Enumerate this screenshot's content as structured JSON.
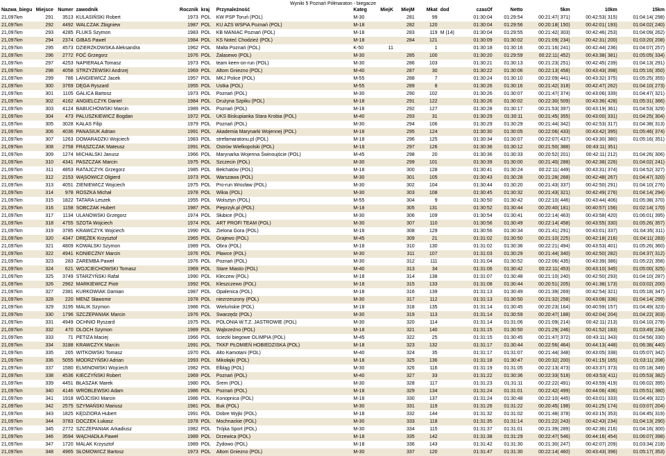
{
  "title": "Wyniki 5 Poznań Półmaraton - biegacze",
  "columns": [
    "Nazwa_biegu",
    "Miejsce",
    "Numer",
    "zawodnik",
    "Rocznik",
    "kraj",
    "Przynależność",
    "Kateg",
    "MiejK",
    "MiejM",
    "Mkat",
    "dod",
    "czasOf",
    "Netto",
    "5km",
    "10km",
    "15km"
  ],
  "col_align": [
    "l",
    "r",
    "r",
    "l",
    "r",
    "l",
    "l",
    "l",
    "r",
    "r",
    "r",
    "l",
    "r",
    "r",
    "r",
    "r",
    "r"
  ],
  "row_colors": {
    "odd": "#ffffff",
    "even": "#efe7d6"
  },
  "rows": [
    [
      "21,097km",
      "291",
      "3513",
      "KULASIŃSKI Robert",
      "1973",
      "POL",
      "KW PSP Toruń (POL)",
      "M-30",
      "",
      "281",
      "99",
      "",
      "01:30:04",
      "01:29:54",
      "00:21:47( 371)",
      "00:42:53( 315)",
      "01:04:14( 298)"
    ],
    [
      "21,097km",
      "292",
      "4492",
      "WALCZAK Zbigniew",
      "1987",
      "POL",
      "KU AZS WSPiA Poznań (POL)",
      "M-18",
      "",
      "282",
      "120",
      "",
      "01:30:04",
      "01:29:56",
      "00:20:18( 150)",
      "00:42:01( 193)",
      "01:04:02( 240)"
    ],
    [
      "21,097km",
      "293",
      "4285",
      "FLUKS Szymon",
      "1983",
      "POL",
      "KB MANIAC Poznań (POL)",
      "M-18",
      "",
      "283",
      "119",
      "M (14)",
      "01:30:04",
      "01:29:55",
      "00:21:42( 303)",
      "00:42:46( 253)",
      "01:04:09( 262)"
    ],
    [
      "21,097km",
      "294",
      "2374",
      "GIBAS Paweł",
      "1984",
      "POL",
      "KS Noteć Chodzież (POL)",
      "M-18",
      "",
      "284",
      "121",
      "",
      "01:30:09",
      "01:30:02",
      "00:21:09( 234)",
      "00:42:31( 200)",
      "01:03:20( 208)"
    ],
    [
      "21,097km",
      "295",
      "4573",
      "DZIERZKOWSKA Aleksandra",
      "1962",
      "POL",
      "Malta Poznań (POL)",
      "K-50",
      "11",
      "",
      "1",
      "",
      "01:30:18",
      "01:30:16",
      "00:21:16( 241)",
      "00:42:44( 236)",
      "01:04:07( 257)"
    ],
    [
      "21,097km",
      "296",
      "2772",
      "FOĆ Grzegorz",
      "1976",
      "POL",
      "Żalasewo (POL)",
      "M-30",
      "",
      "285",
      "100",
      "",
      "01:30:20",
      "01:29:59",
      "00:22:11( 452)",
      "00:43:38( 381)",
      "01:05:05( 334)"
    ],
    [
      "21,097km",
      "297",
      "4253",
      "NAPIERAŁA Tomasz",
      "1973",
      "POL",
      "team keen-on-run (POL)",
      "M-30",
      "",
      "286",
      "103",
      "",
      "01:30:21",
      "01:30:13",
      "00:21:23( 251)",
      "00:42:45( 239)",
      "01:04:13( 291)"
    ],
    [
      "21,097km",
      "298",
      "4058",
      "STRZYŻEWSKI Andrzej",
      "1969",
      "POL",
      "Altom Gniezno (POL)",
      "M-40",
      "",
      "287",
      "30",
      "",
      "01:30:22",
      "01:30:06",
      "00:22:13( 458)",
      "00:43:43( 398)",
      "01:05:16( 350)"
    ],
    [
      "21,097km",
      "299",
      "786",
      "LANGIEWICZ Jacek",
      "1957",
      "POL",
      "MKJ Police (POL)",
      "M-55",
      "",
      "288",
      "7",
      "",
      "01:30:24",
      "01:30:10",
      "00:22:09( 441)",
      "00:43:32( 375)",
      "01:05:25( 355)"
    ],
    [
      "21,097km",
      "300",
      "3769",
      "DĘGA Ryszard",
      "1955",
      "POL",
      "Ustka (POL)",
      "M-55",
      "",
      "289",
      "8",
      "",
      "01:30:26",
      "01:30:16",
      "00:21:42( 318)",
      "00:42:47( 262)",
      "01:04:10( 273)"
    ],
    [
      "21,097km",
      "301",
      "1105",
      "GALICA Bartosz",
      "1973",
      "POL",
      "Poznań (POL)",
      "M-30",
      "",
      "290",
      "102",
      "",
      "01:30:26",
      "01:30:07",
      "00:21:47( 374)",
      "00:43:06( 339)",
      "01:04:47( 321)"
    ],
    [
      "21,097km",
      "302",
      "4162",
      "ANGIELCZYK Daniel",
      "1984",
      "POL",
      "Drużyna Szpiku (POL)",
      "M-18",
      "",
      "291",
      "122",
      "",
      "01:30:26",
      "01:30:02",
      "00:22:30( 509)",
      "00:43:36( 428)",
      "01:05:31( 366)"
    ],
    [
      "21,097km",
      "303",
      "4124",
      "BABUCHOWSKI Marcin",
      "1989",
      "POL",
      "Poznań (POL)",
      "M-18",
      "",
      "292",
      "127",
      "",
      "01:30:28",
      "01:30:17",
      "00:21:53( 397)",
      "00:43:19( 361)",
      "01:04:53( 329)"
    ],
    [
      "21,097km",
      "304",
      "473",
      "PALUSZKIEWICZ Bogdan",
      "1972",
      "POL",
      "UKS Biskupianka Stara Krobia (POL)",
      "M-40",
      "",
      "293",
      "31",
      "",
      "01:30:29",
      "01:30:11",
      "00:21:45( 355)",
      "00:43:00( 331)",
      "01:04:25( 304)"
    ],
    [
      "21,097km",
      "305",
      "3028",
      "KAŁAS Filip",
      "1979",
      "POL",
      "Poznań (POL)",
      "M-30",
      "",
      "294",
      "106",
      "",
      "01:30:29",
      "01:30:29",
      "00:21:44( 342)",
      "00:42:53( 317)",
      "01:04:38( 313)"
    ],
    [
      "21,097km",
      "306",
      "4036",
      "PANASIUK Adrian",
      "1991",
      "POL",
      "Akademia Marynarki Wojennej (POL)",
      "M-18",
      "",
      "295",
      "124",
      "",
      "01:30:30",
      "01:30:05",
      "00:22:06( 433)",
      "00:43:42( 395)",
      "01:05:46( 374)"
    ],
    [
      "21,097km",
      "307",
      "1263",
      "DOMARADZKI Wojciech",
      "1983",
      "POL",
      "strefamaratonu.pl (POL)",
      "M-18",
      "",
      "296",
      "125",
      "",
      "01:30:34",
      "01:30:07",
      "00:22:07( 437)",
      "00:43:30( 380)",
      "01:05:16( 351)"
    ],
    [
      "21,097km",
      "308",
      "2758",
      "FRĄSZCZAK Mateusz",
      "1991",
      "POL",
      "Ostrów Wielkopolski (POL)",
      "M-18",
      "",
      "297",
      "126",
      "",
      "01:30:36",
      "01:30:12",
      "00:21:50( 388)",
      "00:43:11( 351)",
      ""
    ],
    [
      "21,097km",
      "309",
      "1274",
      "MICHALSKI Janusz",
      "1966",
      "POL",
      "Marynarka Wojenna Świnoujście (POL)",
      "M-45",
      "",
      "298",
      "20",
      "",
      "01:30:36",
      "01:30:33",
      "00:20:52( 201)",
      "00:42:11( 212)",
      "01:04:26( 306)"
    ],
    [
      "21,097km",
      "310",
      "4341",
      "PASZCZAK Marcin",
      "1975",
      "POL",
      "Szczecin (POL)",
      "M-30",
      "",
      "299",
      "101",
      "",
      "01:30:39",
      "01:30:00",
      "00:21:40( 288)",
      "00:42:38( 226)",
      "01:04:02( 241)"
    ],
    [
      "21,097km",
      "311",
      "4853",
      "RATAJCZYK Grzegorz",
      "1985",
      "POL",
      "Bełchatów (POL)",
      "M-18",
      "",
      "300",
      "128",
      "",
      "01:30:41",
      "01:30:24",
      "00:22:11( 449)",
      "00:43:31( 374)",
      "01:04:52( 327)"
    ],
    [
      "21,097km",
      "312",
      "2153",
      "WĄSOWICZ Olgierd",
      "1973",
      "POL",
      "Warszawa (POL)",
      "M-30",
      "",
      "301",
      "105",
      "",
      "01:30:43",
      "01:30:28",
      "00:21:28( 268)",
      "00:42:48( 267)",
      "01:04:47( 320)"
    ],
    [
      "21,097km",
      "313",
      "4051",
      "ZIENIEWICZ Wojciech",
      "1975",
      "POL",
      "Pro-run Wrocław (POL)",
      "M-30",
      "",
      "302",
      "104",
      "",
      "01:30:44",
      "01:30:20",
      "00:21:43( 337)",
      "00:42:50( 291)",
      "01:04:10( 276)"
    ],
    [
      "21,097km",
      "314",
      "978",
      "ROSZKA Michał",
      "1978",
      "POL",
      "Wikia (POL)",
      "M-30",
      "",
      "303",
      "108",
      "",
      "01:30:45",
      "01:30:32",
      "00:21:43( 321)",
      "00:42:49( 276)",
      "01:04:14( 294)"
    ],
    [
      "21,097km",
      "315",
      "1822",
      "TATARA Leszek",
      "1955",
      "POL",
      "Wolsztyn (POL)",
      "M-55",
      "",
      "304",
      "9",
      "",
      "01:30:50",
      "01:30:42",
      "00:22:10( 446)",
      "00:43:44( 406)",
      "01:05:38( 370)"
    ],
    [
      "21,097km",
      "316",
      "1158",
      "SOBCZAK Hubert",
      "1987",
      "POL",
      "Pieprzyk.pl (POL)",
      "M-18",
      "",
      "305",
      "131",
      "",
      "01:30:52",
      "01:30:44",
      "00:20:40( 181)",
      "00:40:57( 156)",
      "01:02:14( 170)"
    ],
    [
      "21,097km",
      "317",
      "1134",
      "ULANOWSKI Grzegorz",
      "1974",
      "POL",
      "Słubice (POL)",
      "M-30",
      "",
      "306",
      "109",
      "",
      "01:30:54",
      "01:30:41",
      "00:22:14( 463)",
      "00:43:58( 420)",
      "01:06:01( 395)"
    ],
    [
      "21,097km",
      "318",
      "4755",
      "SZOTA Wojciech",
      "1974",
      "POL",
      "ART PROFI TEAM (POL)",
      "M-30",
      "",
      "307",
      "110",
      "",
      "01:30:56",
      "01:30:49",
      "00:22:14( 458)",
      "00:43:55( 330)",
      "01:05:26( 357)"
    ],
    [
      "21,097km",
      "319",
      "3785",
      "KRAWCZYK Wojciech",
      "1990",
      "POL",
      "Zielona Gora (POL)",
      "M-18",
      "",
      "308",
      "129",
      "",
      "01:30:56",
      "01:30:34",
      "00:21:41( 291)",
      "00:43:01( 337)",
      "01:04:35( 311)"
    ],
    [
      "21,097km",
      "320",
      "4347",
      "DRĘŻEK Krzysztof",
      "1965",
      "POL",
      "Grajewo (POL)",
      "M-45",
      "",
      "309",
      "21",
      "",
      "01:31:02",
      "01:30:50",
      "00:21:10( 225)",
      "00:42:18( 216)",
      "01:04:11( 283)"
    ],
    [
      "21,097km",
      "321",
      "4809",
      "KOWALSKI Szymon",
      "1989",
      "POL",
      "Obra (POL)",
      "M-18",
      "",
      "310",
      "130",
      "",
      "01:31:02",
      "01:30:36",
      "00:22:21( 494)",
      "00:43:53( 401)",
      "01:05:26( 360)"
    ],
    [
      "21,097km",
      "322",
      "4941",
      "KONIECZNY Marcin",
      "1976",
      "POL",
      "Pławce (POL)",
      "M-30",
      "",
      "311",
      "107",
      "",
      "01:31:03",
      "01:30:29",
      "00:21:44( 340)",
      "00:42:50( 282)",
      "01:04:37( 312)"
    ],
    [
      "21,097km",
      "323",
      "283",
      "ZAREMBA Paweł",
      "1976",
      "POL",
      "Poznań (POL)",
      "M-30",
      "",
      "312",
      "111",
      "",
      "01:31:04",
      "01:30:52",
      "00:22:06( 435)",
      "00:43:39( 386)",
      "01:05:22( 358)"
    ],
    [
      "21,097km",
      "324",
      "621",
      "WOJCIECHOWSKI Tomasz",
      "1969",
      "POL",
      "Stare Miasto (POL)",
      "M-40",
      "",
      "313",
      "34",
      "",
      "01:31:06",
      "01:30:42",
      "00:22:11( 453)",
      "00:43:10( 345)",
      "01:05:00( 325)"
    ],
    [
      "21,097km",
      "325",
      "3749",
      "STARZYŃSKI Rafał",
      "1990",
      "POL",
      "Kleczew (POL)",
      "M-18",
      "",
      "314",
      "138",
      "",
      "01:31:07",
      "01:30:48",
      "00:21:10( 240)",
      "00:42:50( 293)",
      "01:04:10( 287)"
    ],
    [
      "21,097km",
      "326",
      "2962",
      "MARKIEWICZ Piotr",
      "1992",
      "POL",
      "Kleszczewo (POL)",
      "M-18",
      "",
      "315",
      "133",
      "",
      "01:31:08",
      "01:30:44",
      "00:20:51( 205)",
      "00:41:38( 173)",
      "01:03:02( 200)"
    ],
    [
      "21,097km",
      "327",
      "2381",
      "KURKOWIAK Damian",
      "1987",
      "POL",
      "Opalenica (POL)",
      "M-18",
      "",
      "316",
      "139",
      "",
      "01:31:13",
      "01:30:49",
      "00:21:39( 269)",
      "00:42:54( 321)",
      "01:05:18( 347)"
    ],
    [
      "21,097km",
      "328",
      "220",
      "MENZ Sławomir",
      "1978",
      "POL",
      "niezrzeszony (POL)",
      "M-30",
      "",
      "317",
      "112",
      "",
      "01:31:13",
      "01:30:50",
      "00:21:32( 258)",
      "00:43:08( 336)",
      "01:04:14( 299)"
    ],
    [
      "21,097km",
      "329",
      "3195",
      "MALIK Szymon",
      "1986",
      "POL",
      "Wieluńskie (POL)",
      "M-18",
      "",
      "318",
      "135",
      "",
      "01:31:14",
      "01:30:45",
      "00:20:23( 164)",
      "00:40:59( 157)",
      "01:04:49( 323)"
    ],
    [
      "21,097km",
      "330",
      "1796",
      "SZCZEPANIAK Marcin",
      "1976",
      "POL",
      "Swarzędz (POL)",
      "M-30",
      "",
      "319",
      "113",
      "",
      "01:31:14",
      "01:30:59",
      "00:20:47( 188)",
      "00:42:04( 204)",
      "01:04:22( 303)"
    ],
    [
      "21,097km",
      "331",
      "4949",
      "OCHNIO Ryszard",
      "1975",
      "POL",
      "POLONIA W.T.Z. JASTROWIE (POL)",
      "M-30",
      "",
      "320",
      "114",
      "",
      "01:31:14",
      "01:31:06",
      "00:21:09( 214)",
      "00:42:11( 213)",
      "01:04:10( 278)"
    ],
    [
      "21,097km",
      "332",
      "470",
      "OLOCH Szymon",
      "1989",
      "POL",
      "Wąbrzeźno (POL)",
      "M-18",
      "",
      "321",
      "140",
      "",
      "01:31:15",
      "01:30:50",
      "00:21:29( 246)",
      "00:41:52( 183)",
      "01:03:49( 234)"
    ],
    [
      "21,097km",
      "333",
      "71",
      "PETIZA Maciej",
      "1966",
      "POL",
      "ścieżki biegowe OLIMPIA (POL)",
      "M-45",
      "",
      "322",
      "25",
      "",
      "01:31:15",
      "01:30:45",
      "00:21:47( 372)",
      "00:43:11( 343)",
      "01:04:56( 330)"
    ],
    [
      "21,097km",
      "334",
      "3188",
      "KRAWCZYK Marcin",
      "1991",
      "POL",
      "TKKF PŁOMIEŃ HOBIEDZISKA (POL)",
      "M-18",
      "",
      "323",
      "132",
      "",
      "01:31:17",
      "01:30:44",
      "00:22:56( 464)",
      "00:44:13( 448)",
      "01:06:38( 440)"
    ],
    [
      "21,097km",
      "335",
      "265",
      "WITKOWSKI Tomasz",
      "1970",
      "POL",
      "Alto Kamotani (POL)",
      "M-40",
      "",
      "324",
      "35",
      "",
      "01:31:17",
      "01:31:07",
      "00:21:44( 348)",
      "00:43:05( 338)",
      "01:05:07( 342)"
    ],
    [
      "21,097km",
      "336",
      "5055",
      "MODRZYŃSKI Adrian",
      "1993",
      "POL",
      "Mikołajki (POL)",
      "M-18",
      "",
      "325",
      "136",
      "",
      "01:31:18",
      "01:30:47",
      "00:20:32( 200)",
      "00:41:15( 165)",
      "01:03:11( 208)"
    ],
    [
      "21,097km",
      "337",
      "1580",
      "ELMINOWSKI Wojciech",
      "1982",
      "POL",
      "Elbląg (POL)",
      "M-30",
      "",
      "326",
      "116",
      "",
      "01:31:19",
      "01:31:05",
      "00:22:13( 473)",
      "00:43:37( 373)",
      "01:05:18( 349)"
    ],
    [
      "21,097km",
      "338",
      "4536",
      "KIECZYŃSKI Robert",
      "1969",
      "POL",
      "Poznań (POL)",
      "M-40",
      "",
      "327",
      "33",
      "",
      "01:31:22",
      "01:30:36",
      "00:22:33( 518)",
      "00:43:53( 411)",
      "01:05:53( 382)"
    ],
    [
      "21,097km",
      "339",
      "4451",
      "BŁASZAK Marek",
      "1980",
      "POL",
      "Śrem (POL)",
      "M-30",
      "",
      "328",
      "117",
      "",
      "01:31:23",
      "01:31:11",
      "00:22:22( 491)",
      "00:43:59( 419)",
      "01:06:02( 395)"
    ],
    [
      "21,097km",
      "340",
      "4146",
      "WRÓBLEWSKI Adam",
      "1986",
      "POL",
      "Poznań (POL)",
      "M-18",
      "",
      "329",
      "134",
      "",
      "01:31:24",
      "01:31:01",
      "00:22:42( 499)",
      "00:44:06( 436)",
      "01:05:51( 380)"
    ],
    [
      "21,097km",
      "341",
      "1918",
      "WÓJCISKI Marcin",
      "1986",
      "POL",
      "Konopnica (POL)",
      "M-18",
      "",
      "330",
      "137",
      "",
      "01:31:24",
      "01:30:48",
      "00:22:10( 445)",
      "00:43:01( 333)",
      "01:04:49( 322)"
    ],
    [
      "21,097km",
      "342",
      "2575",
      "SZYMAŃSKI Mariusz",
      "1981",
      "POL",
      "Buk (POL)",
      "M-30",
      "",
      "331",
      "119",
      "",
      "01:31:26",
      "01:31:22",
      "00:20:45( 198)",
      "00:41:25( 174)",
      "01:03:07( 204)"
    ],
    [
      "21,097km",
      "343",
      "1825",
      "KĘDZIORA Hubert",
      "1991",
      "POL",
      "Dobre Wyjki (POL)",
      "M-18",
      "",
      "332",
      "144",
      "",
      "01:31:32",
      "01:31:02",
      "00:21:48( 378)",
      "00:43:15( 353)",
      "01:04:45( 319)"
    ],
    [
      "21,097km",
      "344",
      "3783",
      "DOCZEK Łukasz",
      "1978",
      "POL",
      "Mochnackie (POL)",
      "M-30",
      "",
      "333",
      "118",
      "",
      "01:31:35",
      "01:31:14",
      "00:21:22( 243)",
      "00:42:43( 234)",
      "01:04:13( 290)"
    ],
    [
      "21,097km",
      "345",
      "2772",
      "SZCZEPANIAK Arkadiusz",
      "1982",
      "POL",
      "Trójka Sport (POL)",
      "M-30",
      "",
      "334",
      "115",
      "",
      "01:31:37",
      "01:31:01",
      "00:21:39( 289)",
      "00:42:36( 216)",
      "01:04:16( 300)"
    ],
    [
      "21,097km",
      "346",
      "3594",
      "WĄCHADŁA Paweł",
      "1989",
      "POL",
      "Drzewica (POL)",
      "M-18",
      "",
      "335",
      "142",
      "",
      "01:31:38",
      "01:31:29",
      "00:22:47( 546)",
      "00:44:16( 454)",
      "01:06:07( 398)"
    ],
    [
      "21,097km",
      "347",
      "1720",
      "MALAK Krzysztof",
      "1989",
      "POL",
      "Żydowo (POL)",
      "M-18",
      "",
      "336",
      "143",
      "",
      "01:31:42",
      "01:31:30",
      "00:21:30( 247)",
      "00:42:07( 209)",
      "01:03:34( 218)"
    ],
    [
      "21,097km",
      "348",
      "4965",
      "SŁOMOWICZ Bartosz",
      "1973",
      "POL",
      "Altom Gniezno (POL)",
      "M-30",
      "",
      "337",
      "120",
      "",
      "01:31:47",
      "01:31:30",
      "00:22:14( 460)",
      "00:43:43( 396)",
      "01:05:17( 353)"
    ]
  ]
}
